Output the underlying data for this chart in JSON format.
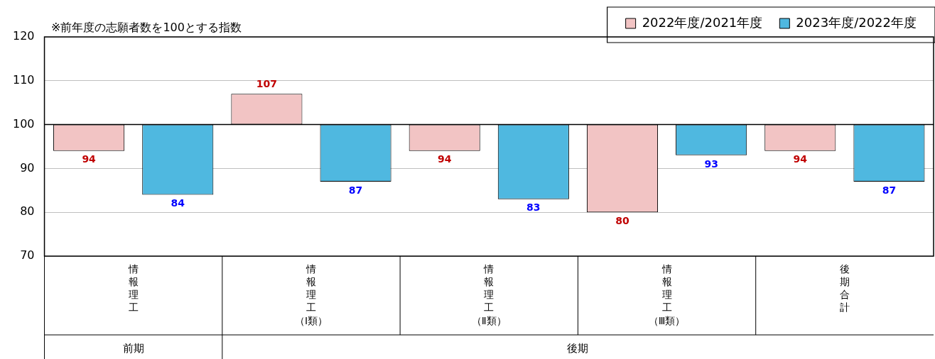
{
  "chart_data": {
    "type": "bar",
    "categories": [
      "情報理工",
      "情報理工（Ⅰ類）",
      "情報理工（Ⅱ類）",
      "情報理工（Ⅲ類）",
      "後期合計"
    ],
    "series": [
      {
        "name": "2022年度/2021年度",
        "color": "#f2c4c4",
        "base": [
          100,
          100,
          100,
          100,
          100
        ],
        "values": [
          -6,
          7,
          -6,
          -20,
          -6
        ],
        "value_labels": [
          "94",
          "107",
          "94",
          "80",
          "94"
        ]
      },
      {
        "name": "2023年度/2022年度",
        "color": "#4fb8e0",
        "base": [
          100,
          100,
          100,
          100,
          100
        ],
        "values": [
          -16,
          -13,
          -17,
          -7,
          -13
        ],
        "value_labels": [
          "84",
          "87",
          "83",
          "93",
          "87"
        ]
      }
    ],
    "ylim": [
      70,
      120
    ],
    "yticks": [
      70,
      80,
      90,
      100,
      110,
      120
    ],
    "grid": "y",
    "legend": "top right",
    "ref_lines": [
      {
        "axis": "y",
        "value": 100,
        "color": "#000000"
      }
    ],
    "annotations": [
      "※前年度の志願者数を100とする指数",
      "前期",
      "後期"
    ]
  }
}
